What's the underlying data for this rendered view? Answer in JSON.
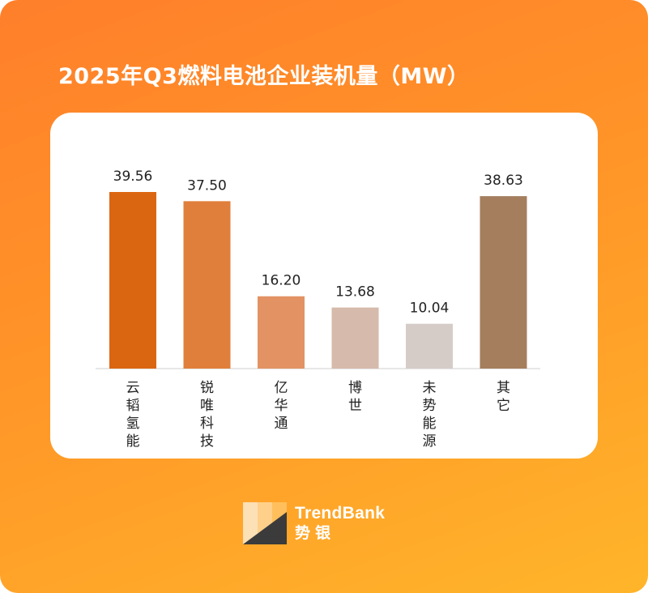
{
  "title": "2025年Q3燃料电池企业装机量（MW）",
  "chart_data": {
    "type": "bar",
    "categories": [
      "云韬氢能",
      "锐唯科技",
      "亿华通",
      "博世",
      "未势能源",
      "其它"
    ],
    "values": [
      39.56,
      37.5,
      16.2,
      13.68,
      10.04,
      38.63
    ],
    "value_labels": [
      "39.56",
      "37.50",
      "16.20",
      "13.68",
      "10.04",
      "38.63"
    ],
    "colors": [
      "#db6611",
      "#e07f3b",
      "#e39264",
      "#d6baab",
      "#d5ccc8",
      "#a47e5d"
    ],
    "ylim": [
      0,
      39.56
    ],
    "grid": false,
    "legend": "none"
  },
  "brand": {
    "name_en": "TrendBank",
    "name_cn": "势银"
  }
}
